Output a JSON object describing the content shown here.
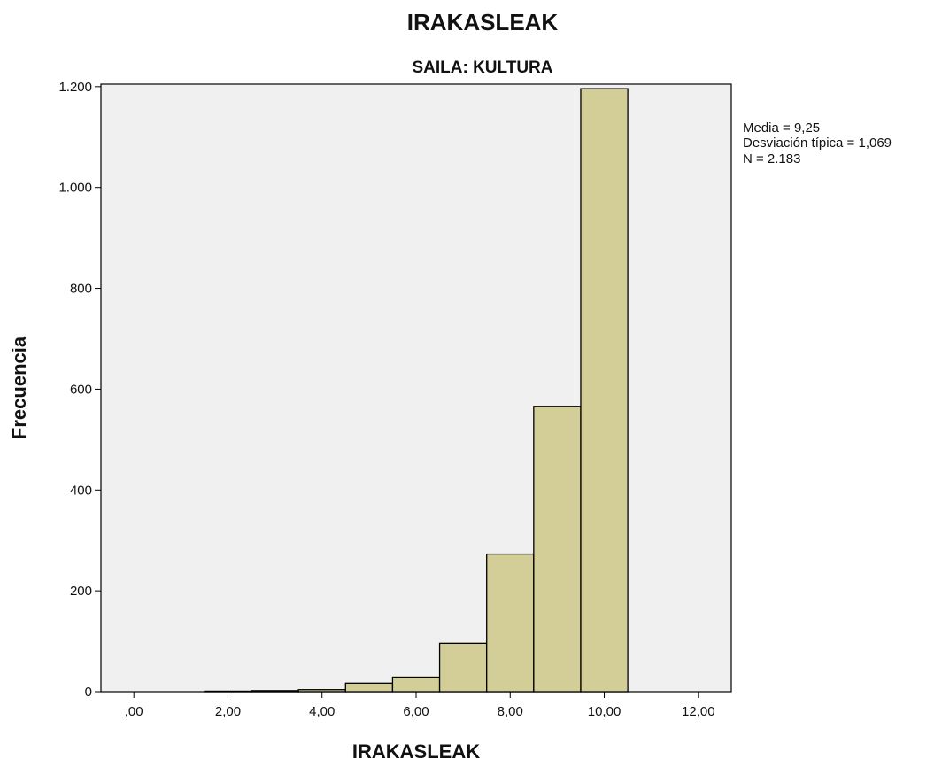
{
  "chart_data": {
    "type": "bar",
    "title": "IRAKASLEAK",
    "subtitle": "SAILA: KULTURA",
    "xlabel": "IRAKASLEAK",
    "ylabel": "Frecuencia",
    "xlim": [
      -0.7,
      12.7
    ],
    "ylim": [
      0,
      1205
    ],
    "x_ticks": [
      0,
      2,
      4,
      6,
      8,
      10,
      12
    ],
    "x_tick_labels": [
      ",00",
      "2,00",
      "4,00",
      "6,00",
      "8,00",
      "10,00",
      "12,00"
    ],
    "y_ticks": [
      0,
      200,
      400,
      600,
      800,
      1000,
      1200
    ],
    "y_tick_labels": [
      "0",
      "200",
      "400",
      "600",
      "800",
      "1.000",
      "1.200"
    ],
    "bin_width": 1,
    "bins": [
      {
        "center": 2,
        "value": 1
      },
      {
        "center": 3,
        "value": 2
      },
      {
        "center": 4,
        "value": 4
      },
      {
        "center": 5,
        "value": 17
      },
      {
        "center": 6,
        "value": 29
      },
      {
        "center": 7,
        "value": 96
      },
      {
        "center": 8,
        "value": 273
      },
      {
        "center": 9,
        "value": 566
      },
      {
        "center": 10,
        "value": 1196
      }
    ],
    "grid": false,
    "legend": "none",
    "stats": [
      "Media = 9,25",
      "Desviación típica = 1,069",
      "N = 2.183"
    ],
    "colors": {
      "bar_fill": "#d3ce97",
      "plot_background": "#f0f0f0",
      "outline": "#000000"
    }
  }
}
